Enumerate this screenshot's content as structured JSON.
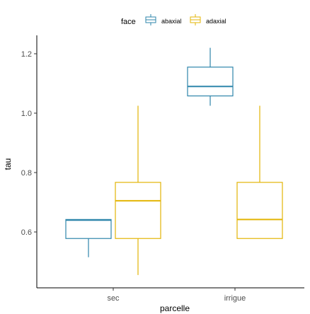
{
  "chart_data": {
    "type": "boxplot",
    "xlabel": "parcelle",
    "ylabel": "tau",
    "categories": [
      "sec",
      "irrigue"
    ],
    "ylim": [
      0.4,
      1.3
    ],
    "yticks": [
      0.6,
      0.8,
      1.0,
      1.2
    ],
    "ytick_labels": [
      "0.6",
      "0.8",
      "1.0",
      "1.2"
    ],
    "legend": {
      "title": "face",
      "position": "top"
    },
    "grid": false,
    "series": [
      {
        "name": "abaxial",
        "color": "#2e86ab",
        "boxes": [
          {
            "category": "sec",
            "min": 0.515,
            "q1": 0.578,
            "median": 0.64,
            "q3": 0.642,
            "max": 0.642
          },
          {
            "category": "irrigue",
            "min": 1.025,
            "q1": 1.058,
            "median": 1.09,
            "q3": 1.155,
            "max": 1.22
          }
        ]
      },
      {
        "name": "adaxial",
        "color": "#e3b505",
        "boxes": [
          {
            "category": "sec",
            "min": 0.455,
            "q1": 0.578,
            "median": 0.705,
            "q3": 0.767,
            "max": 1.025
          },
          {
            "category": "irrigue",
            "min": 0.578,
            "q1": 0.578,
            "median": 0.642,
            "q3": 0.767,
            "max": 1.025
          }
        ]
      }
    ]
  }
}
